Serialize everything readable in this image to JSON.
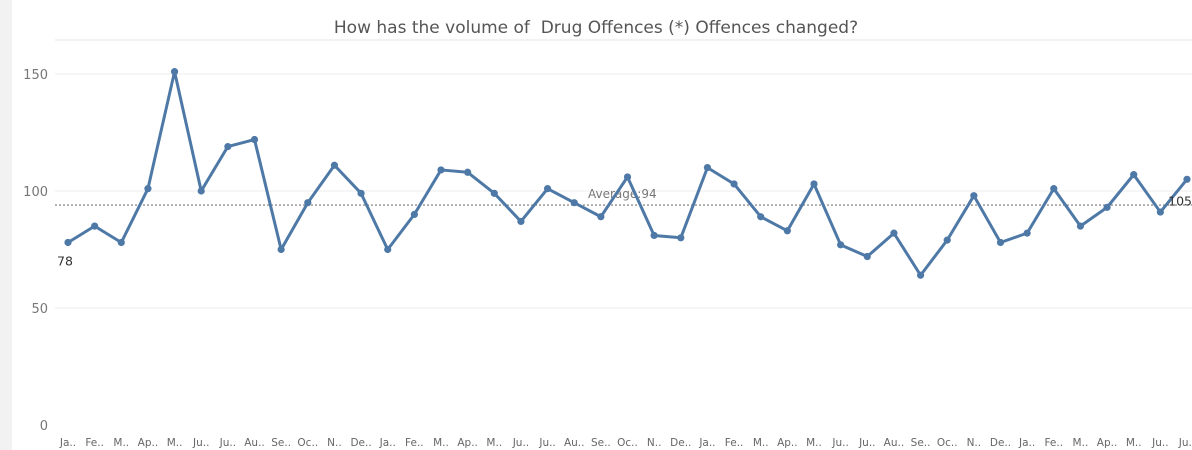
{
  "chart_data": {
    "type": "line",
    "title": "How has the volume of  Drug Offences (*) Offences changed?",
    "categories": [
      "Ja..",
      "Fe..",
      "M..",
      "Ap..",
      "M..",
      "Ju..",
      "Ju..",
      "Au..",
      "Se..",
      "Oc..",
      "N..",
      "De..",
      "Ja..",
      "Fe..",
      "M..",
      "Ap..",
      "M..",
      "Ju..",
      "Ju..",
      "Au..",
      "Se..",
      "Oc..",
      "N..",
      "De..",
      "Ja..",
      "Fe..",
      "M..",
      "Ap..",
      "M..",
      "Ju..",
      "Ju..",
      "Au..",
      "Se..",
      "Oc..",
      "N..",
      "De..",
      "Ja..",
      "Fe..",
      "M..",
      "Ap..",
      "M..",
      "Ju..",
      "Ju.."
    ],
    "values": [
      78,
      85,
      78,
      101,
      151,
      100,
      119,
      122,
      75,
      95,
      111,
      99,
      75,
      90,
      109,
      108,
      99,
      87,
      101,
      95,
      89,
      106,
      81,
      80,
      110,
      103,
      89,
      83,
      103,
      77,
      72,
      82,
      64,
      79,
      98,
      78,
      82,
      101,
      85,
      93,
      107,
      91,
      105
    ],
    "ylim": [
      0,
      160
    ],
    "yticks": [
      0,
      50,
      100,
      150
    ],
    "grid": true,
    "line_color": "#4e79a7",
    "average": {
      "value": 94,
      "label": "Average:94"
    },
    "start_label": "78",
    "end_label": "105"
  }
}
